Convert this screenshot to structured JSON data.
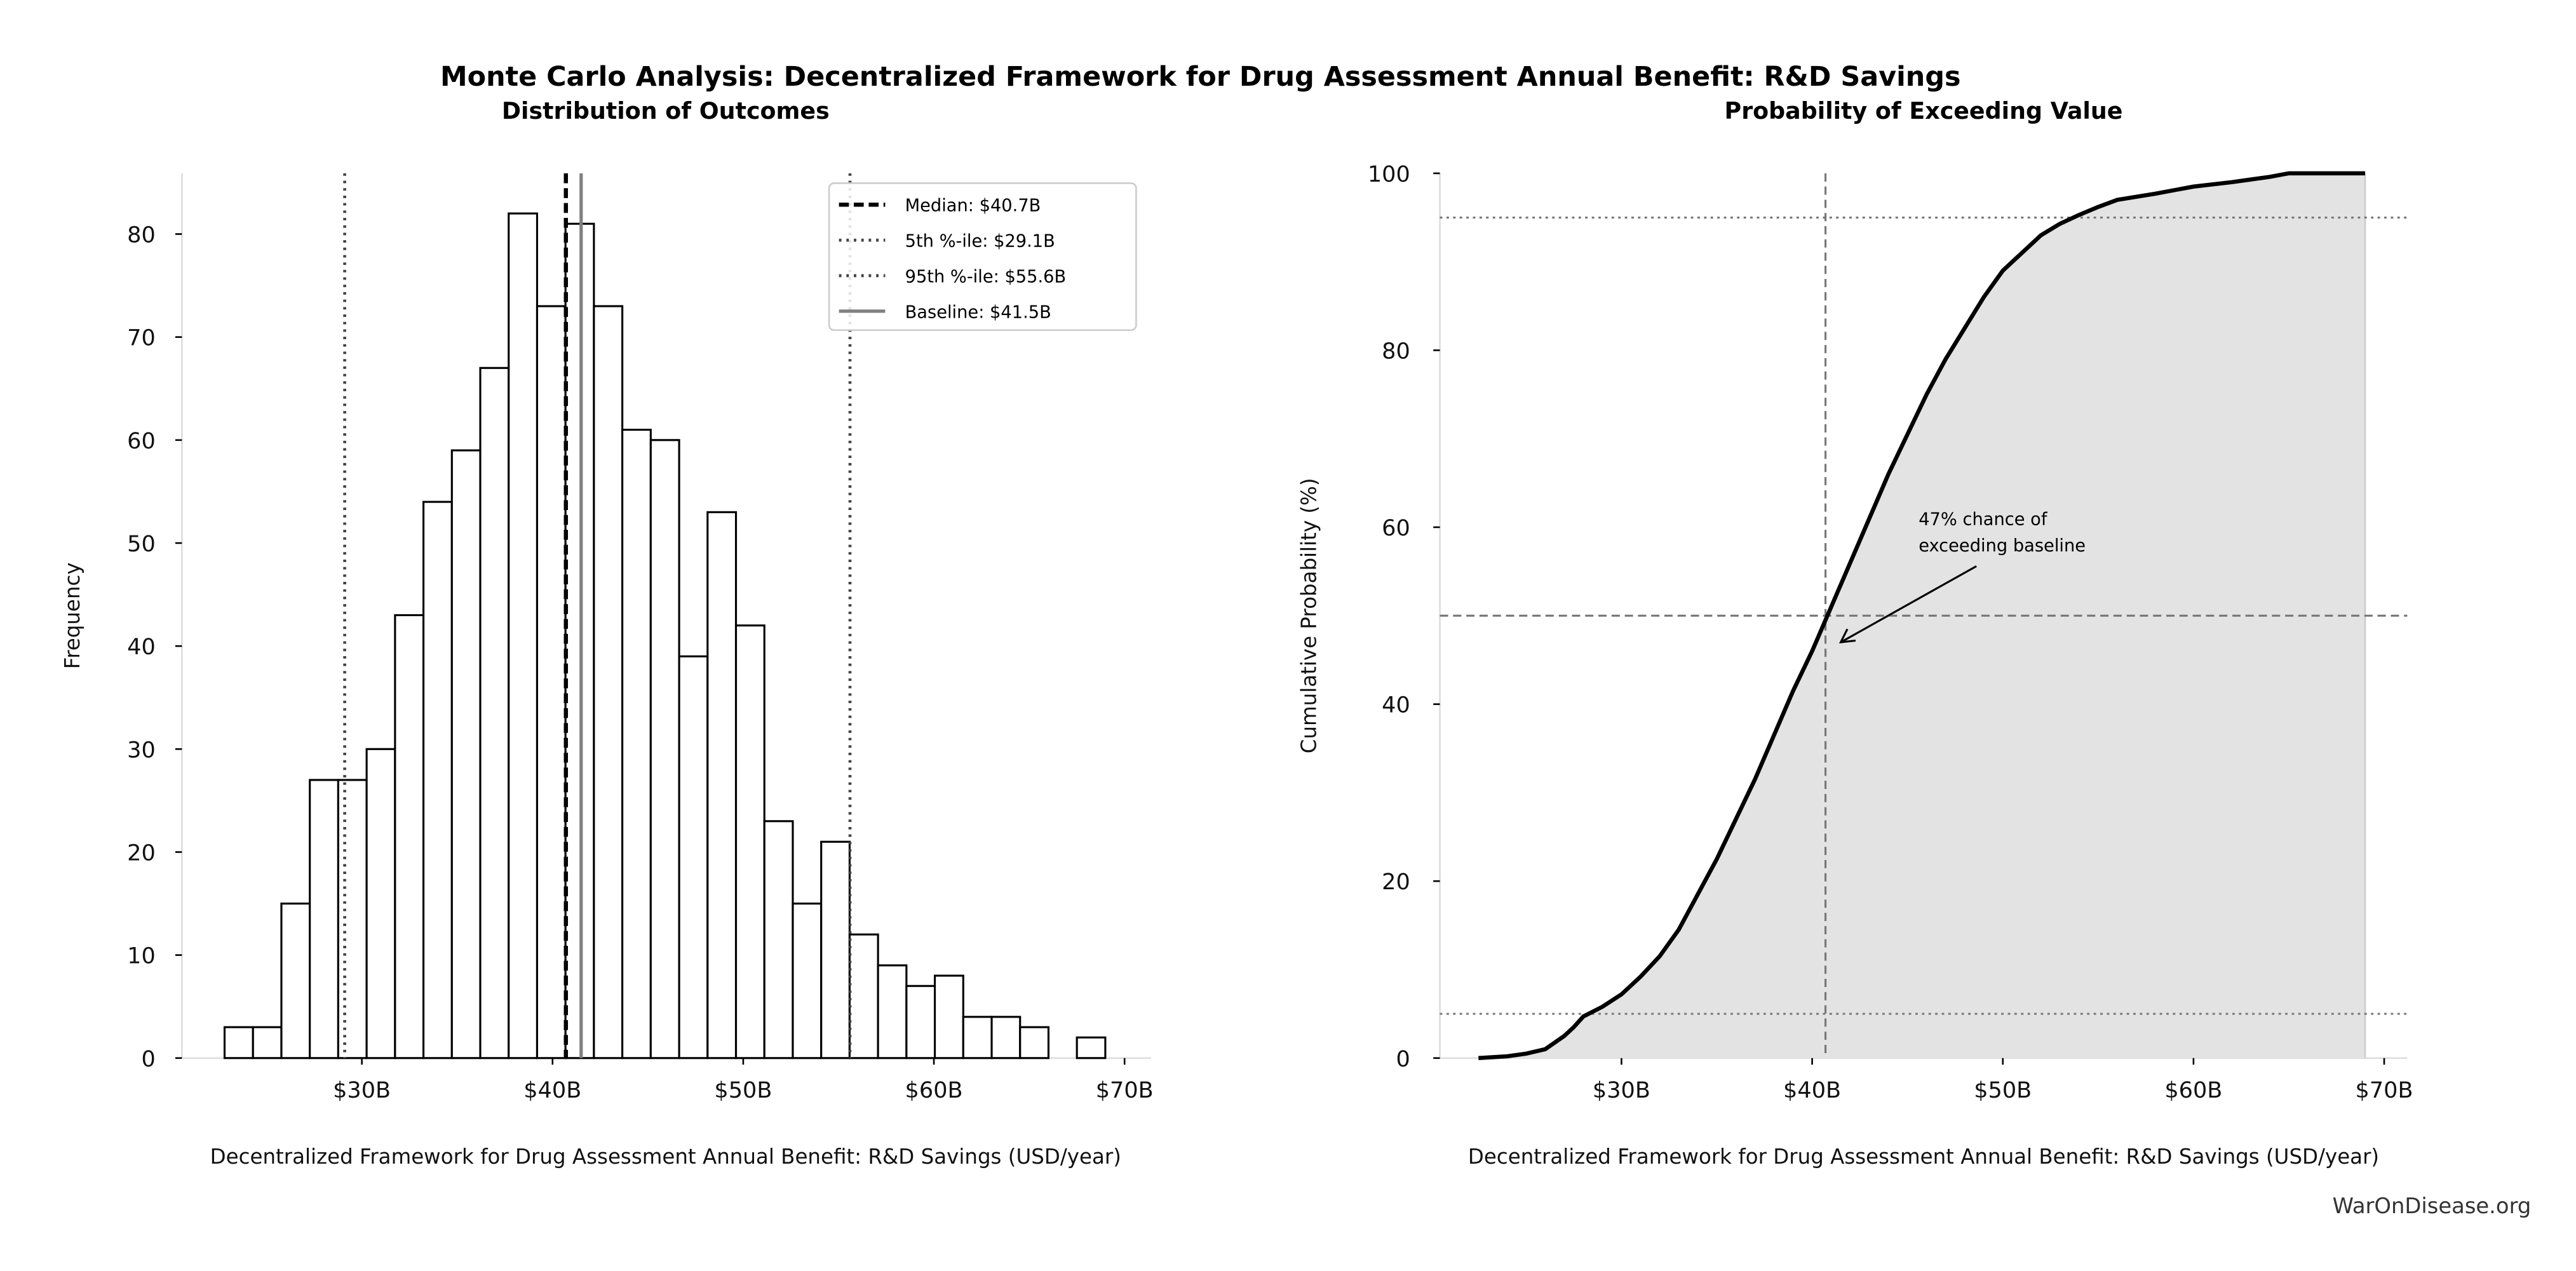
{
  "suptitle": "Monte Carlo Analysis: Decentralized Framework for Drug Assessment Annual Benefit: R&D Savings",
  "watermark": "WarOnDisease.org",
  "chart_data": [
    {
      "type": "bar",
      "subtype": "histogram",
      "title": "Distribution of Outcomes",
      "xlabel": "Decentralized Framework for Drug Assessment Annual Benefit: R&D Savings (USD/year)",
      "ylabel": "Frequency",
      "bin_start": 22.8,
      "bin_width": 1.49,
      "values": [
        3,
        3,
        15,
        27,
        27,
        30,
        43,
        54,
        59,
        67,
        82,
        73,
        81,
        73,
        61,
        60,
        39,
        53,
        42,
        23,
        15,
        21,
        12,
        9,
        7,
        8,
        4,
        4,
        3,
        0,
        2
      ],
      "xlim": [
        21.5,
        71.5
      ],
      "ylim": [
        0,
        86
      ],
      "xticks": [
        30,
        40,
        50,
        60,
        70
      ],
      "xtick_labels": [
        "$30B",
        "$40B",
        "$50B",
        "$60B",
        "$70B"
      ],
      "yticks": [
        0,
        10,
        20,
        30,
        40,
        50,
        60,
        70,
        80
      ],
      "yticks_labels": [
        "0",
        "10",
        "20",
        "30",
        "40",
        "50",
        "60",
        "70",
        "80"
      ],
      "grid": false,
      "bar_fill": "#ffffff",
      "bar_edge": "#000000",
      "reference_lines": [
        {
          "label": "Median: $40.7B",
          "x": 40.7,
          "style": "dashed",
          "color": "#000000"
        },
        {
          "label": "5th %-ile: $29.1B",
          "x": 29.1,
          "style": "dotted",
          "color": "#444444"
        },
        {
          "label": "95th %-ile: $55.6B",
          "x": 55.6,
          "style": "dotted",
          "color": "#444444"
        },
        {
          "label": "Baseline: $41.5B",
          "x": 41.5,
          "style": "solid",
          "color": "#808080"
        }
      ],
      "legend_position": "top-right"
    },
    {
      "type": "area",
      "title": "Probability of Exceeding Value",
      "xlabel": "Decentralized Framework for Drug Assessment Annual Benefit: R&D Savings (USD/year)",
      "ylabel": "Cumulative Probability (%)",
      "x": [
        22.5,
        24,
        25,
        26,
        27,
        27.5,
        28,
        29,
        30,
        31,
        32,
        33,
        34,
        35,
        36,
        37,
        38,
        39,
        40,
        41,
        42,
        43,
        44,
        45,
        46,
        47,
        48,
        49,
        50,
        51,
        52,
        53,
        54,
        55,
        56,
        58,
        60,
        62,
        63,
        64,
        65,
        69
      ],
      "y": [
        0,
        0.2,
        0.5,
        1,
        2.5,
        3.5,
        4.7,
        5.8,
        7.2,
        9.2,
        11.5,
        14.5,
        18.5,
        22.5,
        27,
        31.5,
        36.5,
        41.5,
        46,
        51,
        56,
        61,
        66,
        70.5,
        75,
        79,
        82.5,
        86,
        89,
        91,
        93,
        94.3,
        95.3,
        96.2,
        97,
        97.7,
        98.5,
        99,
        99.3,
        99.6,
        100,
        100
      ],
      "xlim": [
        21.5,
        71.5
      ],
      "ylim": [
        0,
        100
      ],
      "xticks": [
        30,
        40,
        50,
        60,
        70
      ],
      "xtick_labels": [
        "$30B",
        "$40B",
        "$50B",
        "$60B",
        "$70B"
      ],
      "yticks": [
        0,
        20,
        40,
        60,
        80,
        100
      ],
      "ytick_labels": [
        "0",
        "20",
        "40",
        "60",
        "80",
        "100"
      ],
      "fill_color": "#e3e3e3",
      "line_color": "#000000",
      "hlines": [
        95,
        50,
        5
      ],
      "vline": 40.7,
      "annotation": {
        "text_line1": "47% chance of",
        "text_line2": "exceeding baseline",
        "x": 41.5,
        "y": 47
      },
      "grid": false
    }
  ]
}
